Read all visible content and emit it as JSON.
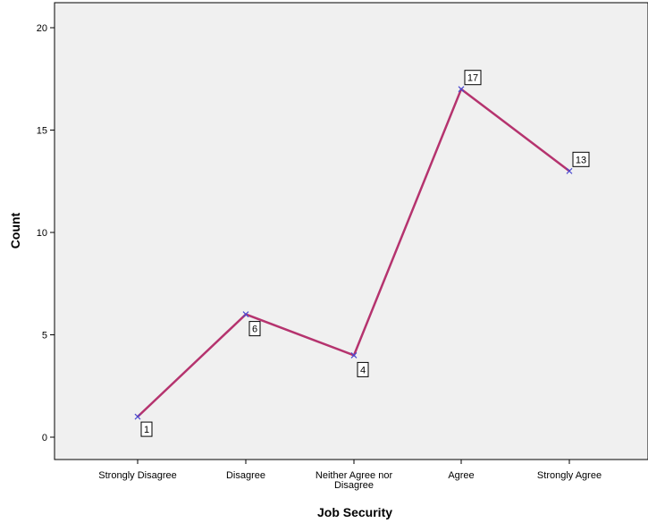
{
  "chart_data": {
    "type": "line",
    "categories": [
      "Strongly Disagree",
      "Disagree",
      "Neither Agree nor Disagree",
      "Agree",
      "Strongly Agree"
    ],
    "category_label_lines": [
      [
        "Strongly Disagree"
      ],
      [
        "Disagree"
      ],
      [
        "Neither Agree nor",
        "Disagree"
      ],
      [
        "Agree"
      ],
      [
        "Strongly Agree"
      ]
    ],
    "values": [
      1,
      6,
      4,
      17,
      13
    ],
    "data_labels": [
      "1",
      "6",
      "4",
      "17",
      "13"
    ],
    "xlabel": "Job Security",
    "ylabel": "Count",
    "ylim": [
      0,
      20
    ],
    "yticks": [
      0,
      5,
      10,
      15,
      20
    ],
    "ytick_labels": [
      "0",
      "5",
      "10",
      "15",
      "20"
    ],
    "grid": false,
    "colors": {
      "plot_background": "#f0f0f0",
      "line": "#b5336e",
      "marker": "#4a4ad0",
      "axis": "#000000"
    }
  }
}
